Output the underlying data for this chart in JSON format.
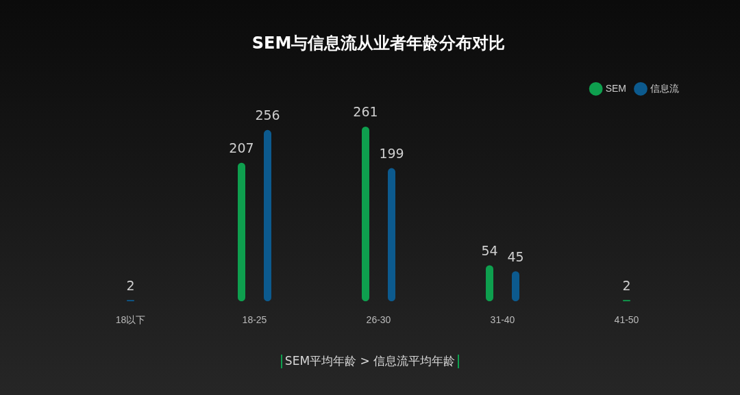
{
  "chart_data": {
    "type": "bar",
    "title": "SEM与信息流从业者年龄分布对比",
    "categories": [
      "18以下",
      "18-25",
      "26-30",
      "31-40",
      "41-50"
    ],
    "series": [
      {
        "name": "SEM",
        "color": "#0e9f4e",
        "values": [
          null,
          207,
          261,
          54,
          2
        ]
      },
      {
        "name": "信息流",
        "color": "#0c5a8e",
        "values": [
          2,
          256,
          199,
          45,
          null
        ]
      }
    ],
    "data_labels": true,
    "legend": "top right",
    "annotations": [
      "SEM平均年龄 > 信息流平均年龄"
    ]
  }
}
